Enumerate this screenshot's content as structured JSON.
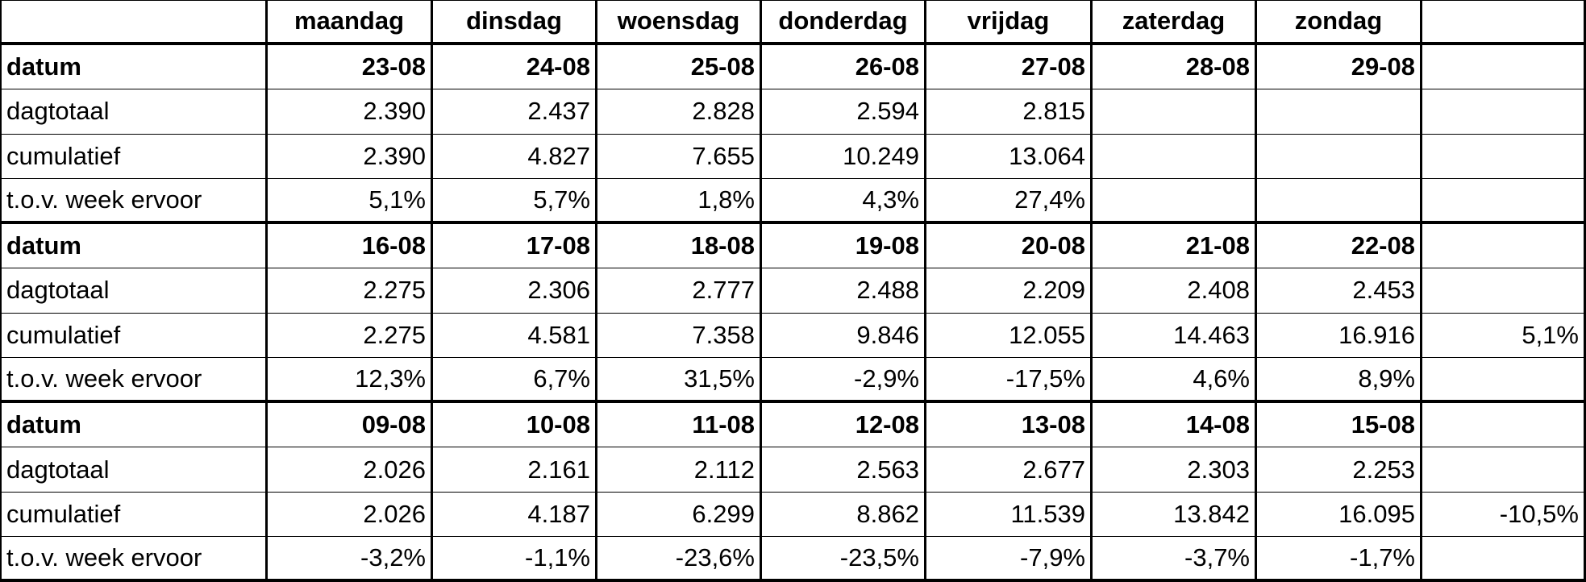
{
  "header": {
    "days": [
      "maandag",
      "dinsdag",
      "woensdag",
      "donderdag",
      "vrijdag",
      "zaterdag",
      "zondag"
    ]
  },
  "rows": [
    {
      "label": "datum",
      "values": [
        "23-08",
        "24-08",
        "25-08",
        "26-08",
        "27-08",
        "28-08",
        "29-08"
      ]
    },
    {
      "label": "dagtotaal",
      "values": [
        "2.390",
        "2.437",
        "2.828",
        "2.594",
        "2.815"
      ]
    },
    {
      "label": "cumulatief",
      "values": [
        "2.390",
        "4.827",
        "7.655",
        "10.249",
        "13.064"
      ]
    },
    {
      "label": "t.o.v. week ervoor",
      "values": [
        "5,1%",
        "5,7%",
        "1,8%",
        "4,3%",
        "27,4%"
      ]
    },
    {
      "label": "datum",
      "values": [
        "16-08",
        "17-08",
        "18-08",
        "19-08",
        "20-08",
        "21-08",
        "22-08"
      ]
    },
    {
      "label": "dagtotaal",
      "values": [
        "2.275",
        "2.306",
        "2.777",
        "2.488",
        "2.209",
        "2.408",
        "2.453"
      ]
    },
    {
      "label": "cumulatief",
      "values": [
        "2.275",
        "4.581",
        "7.358",
        "9.846",
        "12.055",
        "14.463",
        "16.916"
      ],
      "extra": "5,1%"
    },
    {
      "label": "t.o.v. week ervoor",
      "values": [
        "12,3%",
        "6,7%",
        "31,5%",
        "-2,9%",
        "-17,5%",
        "4,6%",
        "8,9%"
      ]
    },
    {
      "label": "datum",
      "values": [
        "09-08",
        "10-08",
        "11-08",
        "12-08",
        "13-08",
        "14-08",
        "15-08"
      ]
    },
    {
      "label": "dagtotaal",
      "values": [
        "2.026",
        "2.161",
        "2.112",
        "2.563",
        "2.677",
        "2.303",
        "2.253"
      ]
    },
    {
      "label": "cumulatief",
      "values": [
        "2.026",
        "4.187",
        "6.299",
        "8.862",
        "11.539",
        "13.842",
        "16.095"
      ],
      "extra": "-10,5%"
    },
    {
      "label": "t.o.v. week ervoor",
      "values": [
        "-3,2%",
        "-1,1%",
        "-23,6%",
        "-23,5%",
        "-7,9%",
        "-3,7%",
        "-1,7%"
      ]
    }
  ]
}
